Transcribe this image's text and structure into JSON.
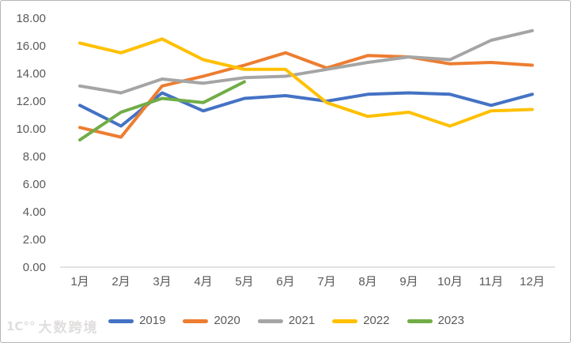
{
  "watermark": {
    "logo": "1C°°",
    "text": "大数跨境"
  },
  "colors": {
    "axis_text": "#595959",
    "axis_line": "#D9D9D9",
    "background": "#FFFFFF",
    "watermark": "#E0DEDD"
  },
  "chart_data": {
    "type": "line",
    "title": "",
    "xlabel": "",
    "ylabel": "",
    "categories": [
      "1月",
      "2月",
      "3月",
      "4月",
      "5月",
      "6月",
      "7月",
      "8月",
      "9月",
      "10月",
      "11月",
      "12月"
    ],
    "y_ticks": [
      "18.00",
      "16.00",
      "14.00",
      "12.00",
      "10.00",
      "8.00",
      "6.00",
      "4.00",
      "2.00",
      "0.00"
    ],
    "ylim": [
      0,
      18
    ],
    "y_tick_step": 2,
    "grid": false,
    "legend_position": "bottom",
    "series": [
      {
        "name": "2019",
        "color": "#4472C4",
        "values": [
          11.7,
          10.2,
          12.6,
          11.3,
          12.2,
          12.4,
          12.0,
          12.5,
          12.6,
          12.5,
          11.7,
          12.5
        ]
      },
      {
        "name": "2020",
        "color": "#ED7D31",
        "values": [
          10.1,
          9.4,
          13.1,
          13.8,
          14.6,
          15.5,
          14.4,
          15.3,
          15.2,
          14.7,
          14.8,
          14.6
        ]
      },
      {
        "name": "2021",
        "color": "#A5A5A5",
        "values": [
          13.1,
          12.6,
          13.6,
          13.3,
          13.7,
          13.8,
          14.3,
          14.8,
          15.2,
          15.0,
          16.4,
          17.1
        ]
      },
      {
        "name": "2022",
        "color": "#FFC000",
        "values": [
          16.2,
          15.5,
          16.5,
          15.0,
          14.3,
          14.3,
          11.9,
          10.9,
          11.2,
          10.2,
          11.3,
          11.4
        ]
      },
      {
        "name": "2023",
        "color": "#70AD47",
        "values": [
          9.2,
          11.2,
          12.2,
          11.9,
          13.4
        ]
      }
    ]
  }
}
